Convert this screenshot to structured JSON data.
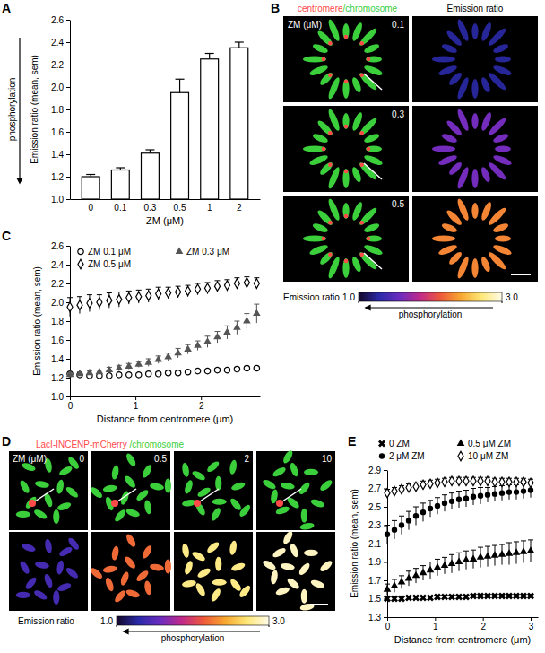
{
  "chart_data": [
    {
      "type": "bar",
      "title": "A",
      "categories": [
        "0",
        "0.1",
        "0.3",
        "0.5",
        "1",
        "2"
      ],
      "values": [
        1.2,
        1.26,
        1.41,
        1.95,
        2.25,
        2.35
      ],
      "errors": [
        0.02,
        0.02,
        0.03,
        0.12,
        0.05,
        0.05
      ],
      "color": "#ffffff",
      "x_label": "ZM (μM)",
      "y_label": "Emission ratio (mean, sem)",
      "annotation": "phosphorylation",
      "ylim": [
        1.0,
        2.6
      ],
      "yticks": [
        {
          "value": 1.0,
          "label": "1.0"
        },
        1.2,
        1.4,
        1.6,
        1.8,
        {
          "value": 2.0,
          "label": "2.0"
        },
        2.2,
        2.4,
        2.6
      ]
    },
    {
      "type": "image",
      "title": "B",
      "header": [
        {
          "text": "centromere",
          "color": "#ff4a4a"
        },
        {
          "text": "/chromosome",
          "color": "#3ccf3c"
        }
      ],
      "column_label": "Emission ratio",
      "row_title": "ZM (μM)",
      "rows": [
        {
          "label": "0.1",
          "emission_ratio": 1.25
        },
        {
          "label": "0.3",
          "emission_ratio": 1.6
        },
        {
          "label": "0.5",
          "emission_ratio": 2.3
        }
      ],
      "colorbar": {
        "label": "Emission ratio",
        "range": [
          1.0,
          3.0
        ],
        "ticks": [
          {
            "value": 1.0,
            "label": "1.0"
          },
          {
            "value": 3.0,
            "label": "3.0"
          }
        ],
        "annotation": "phosphorylation"
      }
    },
    {
      "type": "scatter",
      "title": "C",
      "x": [
        0,
        0.15,
        0.3,
        0.45,
        0.6,
        0.75,
        0.9,
        1.05,
        1.2,
        1.35,
        1.5,
        1.65,
        1.8,
        1.95,
        2.1,
        2.25,
        2.4,
        2.55,
        2.7,
        2.85
      ],
      "x_label": "Distance from centromere (μm)",
      "y_label": "Emission ratio (mean, sem)",
      "xlim": [
        0,
        2.9
      ],
      "xticks": [
        0,
        1,
        2
      ],
      "ylim": [
        1.0,
        2.6
      ],
      "yticks": [
        {
          "value": 1.0,
          "label": "1.0"
        },
        1.2,
        1.4,
        1.6,
        1.8,
        {
          "value": 2.0,
          "label": "2.0"
        },
        2.2,
        2.4,
        2.6
      ],
      "legend": "top-left",
      "series": [
        {
          "name": "ZM 0.1 μM",
          "color": "#000000",
          "marker": "circle-open",
          "values": [
            1.24,
            1.23,
            1.22,
            1.22,
            1.22,
            1.23,
            1.23,
            1.23,
            1.24,
            1.24,
            1.25,
            1.25,
            1.26,
            1.27,
            1.27,
            1.28,
            1.28,
            1.29,
            1.3,
            1.3
          ],
          "errors": [
            0.02,
            0.02,
            0.02,
            0.02,
            0.02,
            0.02,
            0.02,
            0.02,
            0.02,
            0.02,
            0.02,
            0.02,
            0.02,
            0.02,
            0.02,
            0.02,
            0.02,
            0.02,
            0.02,
            0.02
          ]
        },
        {
          "name": "ZM 0.3 μM",
          "color": "#555555",
          "marker": "triangle",
          "values": [
            1.23,
            1.24,
            1.25,
            1.26,
            1.28,
            1.3,
            1.32,
            1.34,
            1.36,
            1.39,
            1.42,
            1.46,
            1.5,
            1.54,
            1.58,
            1.63,
            1.68,
            1.73,
            1.8,
            1.88
          ],
          "errors": [
            0.02,
            0.02,
            0.02,
            0.02,
            0.03,
            0.03,
            0.03,
            0.03,
            0.04,
            0.04,
            0.04,
            0.05,
            0.05,
            0.05,
            0.06,
            0.06,
            0.07,
            0.07,
            0.08,
            0.1
          ]
        },
        {
          "name": "ZM 0.5 μM",
          "color": "#000000",
          "marker": "diamond-open",
          "values": [
            1.95,
            1.97,
            1.99,
            2.0,
            2.02,
            2.03,
            2.05,
            2.06,
            2.07,
            2.09,
            2.1,
            2.11,
            2.12,
            2.14,
            2.15,
            2.17,
            2.18,
            2.2,
            2.21,
            2.2
          ],
          "errors": [
            0.1,
            0.09,
            0.09,
            0.08,
            0.08,
            0.08,
            0.07,
            0.07,
            0.07,
            0.07,
            0.06,
            0.06,
            0.06,
            0.06,
            0.06,
            0.06,
            0.06,
            0.06,
            0.06,
            0.06
          ]
        }
      ]
    },
    {
      "type": "image",
      "title": "D",
      "header": [
        {
          "text": "LacI-INCENP-mCherry",
          "color": "#ff4a4a"
        },
        {
          "text": " /chromosome",
          "color": "#3ccf3c"
        }
      ],
      "row_title": "ZM (μM)",
      "columns": [
        {
          "label": "0",
          "emission_ratio": 1.4
        },
        {
          "label": "0.5",
          "emission_ratio": 2.2
        },
        {
          "label": "2",
          "emission_ratio": 2.75
        },
        {
          "label": "10",
          "emission_ratio": 2.9
        }
      ],
      "colorbar": {
        "label": "Emission ratio",
        "range": [
          1.0,
          3.0
        ],
        "ticks": [
          {
            "value": 1.0,
            "label": "1.0"
          },
          {
            "value": 3.0,
            "label": "3.0"
          }
        ],
        "annotation": "phosphorylation"
      }
    },
    {
      "type": "scatter",
      "title": "E",
      "x": [
        0,
        0.15,
        0.3,
        0.45,
        0.6,
        0.75,
        0.9,
        1.05,
        1.2,
        1.35,
        1.5,
        1.65,
        1.8,
        1.95,
        2.1,
        2.25,
        2.4,
        2.55,
        2.7,
        2.85,
        3.0
      ],
      "x_label": "Distance from centromere (μm)",
      "y_label": "Emission ratio (mean, sem)",
      "xlim": [
        0,
        3.15
      ],
      "xticks": [
        0,
        1,
        2,
        3
      ],
      "ylim": [
        1.3,
        2.9
      ],
      "yticks": [
        1.3,
        1.5,
        1.7,
        1.9,
        2.1,
        2.3,
        2.5,
        2.7,
        2.9
      ],
      "legend": "top",
      "series": [
        {
          "name": "0 ZM",
          "color": "#000000",
          "marker": "x",
          "values": [
            1.5,
            1.5,
            1.5,
            1.51,
            1.51,
            1.51,
            1.51,
            1.52,
            1.52,
            1.52,
            1.52,
            1.52,
            1.53,
            1.53,
            1.53,
            1.53,
            1.53,
            1.53,
            1.53,
            1.53,
            1.53
          ],
          "errors": [
            0.02,
            0.02,
            0.02,
            0.02,
            0.02,
            0.02,
            0.02,
            0.02,
            0.02,
            0.02,
            0.02,
            0.02,
            0.02,
            0.02,
            0.02,
            0.02,
            0.02,
            0.02,
            0.02,
            0.02,
            0.02
          ]
        },
        {
          "name": "0.5 μM ZM",
          "color": "#000000",
          "marker": "triangle",
          "values": [
            1.6,
            1.64,
            1.68,
            1.72,
            1.75,
            1.78,
            1.81,
            1.84,
            1.86,
            1.88,
            1.9,
            1.92,
            1.93,
            1.95,
            1.96,
            1.97,
            1.98,
            1.99,
            2.0,
            2.01,
            2.02
          ],
          "errors": [
            0.06,
            0.07,
            0.07,
            0.08,
            0.08,
            0.08,
            0.09,
            0.09,
            0.09,
            0.1,
            0.1,
            0.1,
            0.1,
            0.11,
            0.11,
            0.11,
            0.11,
            0.12,
            0.12,
            0.12,
            0.12
          ]
        },
        {
          "name": "2 μM ZM",
          "color": "#000000",
          "marker": "circle",
          "values": [
            2.2,
            2.25,
            2.3,
            2.35,
            2.4,
            2.44,
            2.48,
            2.51,
            2.54,
            2.56,
            2.58,
            2.59,
            2.61,
            2.62,
            2.63,
            2.64,
            2.65,
            2.66,
            2.66,
            2.67,
            2.68
          ],
          "errors": [
            0.1,
            0.1,
            0.1,
            0.1,
            0.1,
            0.1,
            0.09,
            0.09,
            0.09,
            0.09,
            0.09,
            0.09,
            0.09,
            0.09,
            0.08,
            0.08,
            0.08,
            0.08,
            0.08,
            0.08,
            0.08
          ]
        },
        {
          "name": "10 μM ZM",
          "color": "#000000",
          "marker": "diamond-open",
          "values": [
            2.65,
            2.67,
            2.69,
            2.71,
            2.72,
            2.74,
            2.75,
            2.76,
            2.77,
            2.78,
            2.78,
            2.78,
            2.78,
            2.78,
            2.78,
            2.77,
            2.77,
            2.77,
            2.77,
            2.77,
            2.76
          ],
          "errors": [
            0.04,
            0.04,
            0.04,
            0.04,
            0.04,
            0.04,
            0.04,
            0.04,
            0.04,
            0.04,
            0.04,
            0.04,
            0.04,
            0.04,
            0.04,
            0.04,
            0.04,
            0.04,
            0.04,
            0.04,
            0.04
          ]
        }
      ]
    }
  ]
}
